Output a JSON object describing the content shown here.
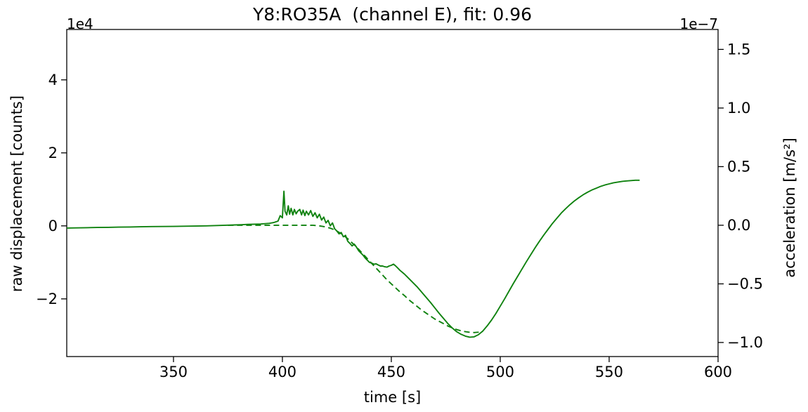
{
  "chart_data": {
    "type": "line",
    "title": "Y8:RO35A  (channel E), fit: 0.96",
    "xlabel": "time [s]",
    "ylabel_left": "raw displacement [counts]",
    "ylabel_right": "acceleration [m/s²]",
    "offset_left": "1e4",
    "offset_right": "1e−7",
    "xlim": [
      301,
      600
    ],
    "ylim_left": [
      -3.58,
      5.38
    ],
    "ylim_right": [
      -1.12,
      1.67
    ],
    "xticks": {
      "values": [
        350,
        400,
        450,
        500,
        550,
        600
      ],
      "labels": [
        "350",
        "400",
        "450",
        "500",
        "550",
        "600"
      ]
    },
    "yticks_left": {
      "values": [
        4,
        2,
        0,
        -2
      ],
      "labels": [
        "4",
        "2",
        "0",
        "−2"
      ]
    },
    "yticks_right": {
      "values": [
        1.5,
        1.0,
        0.5,
        0.0,
        -0.5,
        -1.0
      ],
      "labels": [
        "1.5",
        "1.0",
        "0.5",
        "0.0",
        "−0.5",
        "−1.0"
      ]
    },
    "line_color": "#0f820f",
    "legend": "off",
    "grid": "off",
    "series": [
      {
        "name": "raw displacement",
        "axis": "left",
        "style": "solid",
        "points": [
          [
            301,
            -0.06
          ],
          [
            305,
            -0.055
          ],
          [
            310,
            -0.05
          ],
          [
            315,
            -0.045
          ],
          [
            320,
            -0.04
          ],
          [
            325,
            -0.035
          ],
          [
            330,
            -0.03
          ],
          [
            335,
            -0.025
          ],
          [
            340,
            -0.02
          ],
          [
            345,
            -0.018
          ],
          [
            350,
            -0.015
          ],
          [
            355,
            -0.01
          ],
          [
            360,
            -0.005
          ],
          [
            365,
            0.0
          ],
          [
            370,
            0.01
          ],
          [
            375,
            0.02
          ],
          [
            378,
            0.025
          ],
          [
            381,
            0.03
          ],
          [
            384,
            0.04
          ],
          [
            387,
            0.045
          ],
          [
            390,
            0.05
          ],
          [
            392,
            0.06
          ],
          [
            394,
            0.07
          ],
          [
            396,
            0.09
          ],
          [
            398,
            0.13
          ],
          [
            399,
            0.28
          ],
          [
            400,
            0.22
          ],
          [
            400.7,
            0.95
          ],
          [
            401.2,
            0.4
          ],
          [
            402,
            0.3
          ],
          [
            402.7,
            0.55
          ],
          [
            403.3,
            0.32
          ],
          [
            404,
            0.48
          ],
          [
            404.8,
            0.3
          ],
          [
            405.5,
            0.45
          ],
          [
            406.3,
            0.33
          ],
          [
            407,
            0.4
          ],
          [
            408,
            0.45
          ],
          [
            408.8,
            0.3
          ],
          [
            409.5,
            0.43
          ],
          [
            410.3,
            0.28
          ],
          [
            411,
            0.4
          ],
          [
            412,
            0.3
          ],
          [
            413,
            0.42
          ],
          [
            414,
            0.26
          ],
          [
            415,
            0.36
          ],
          [
            416,
            0.22
          ],
          [
            417,
            0.32
          ],
          [
            418,
            0.16
          ],
          [
            419,
            0.24
          ],
          [
            420,
            0.08
          ],
          [
            421,
            0.15
          ],
          [
            422,
            0.0
          ],
          [
            423,
            0.08
          ],
          [
            424,
            -0.08
          ],
          [
            425,
            -0.14
          ],
          [
            426,
            -0.22
          ],
          [
            427,
            -0.18
          ],
          [
            428,
            -0.3
          ],
          [
            429,
            -0.26
          ],
          [
            430,
            -0.42
          ],
          [
            431,
            -0.48
          ],
          [
            432,
            -0.55
          ],
          [
            433,
            -0.5
          ],
          [
            434,
            -0.58
          ],
          [
            435,
            -0.68
          ],
          [
            436,
            -0.74
          ],
          [
            437,
            -0.8
          ],
          [
            438,
            -0.88
          ],
          [
            439,
            -0.94
          ],
          [
            440,
            -1.0
          ],
          [
            441,
            -1.02
          ],
          [
            442,
            -1.05
          ],
          [
            443,
            -1.04
          ],
          [
            444,
            -1.07
          ],
          [
            445,
            -1.1
          ],
          [
            446,
            -1.1
          ],
          [
            447,
            -1.12
          ],
          [
            448,
            -1.13
          ],
          [
            449,
            -1.1
          ],
          [
            450,
            -1.08
          ],
          [
            451,
            -1.05
          ],
          [
            452,
            -1.1
          ],
          [
            453,
            -1.16
          ],
          [
            454,
            -1.22
          ],
          [
            455,
            -1.27
          ],
          [
            456,
            -1.32
          ],
          [
            457,
            -1.38
          ],
          [
            458,
            -1.44
          ],
          [
            459,
            -1.5
          ],
          [
            460,
            -1.56
          ],
          [
            462,
            -1.68
          ],
          [
            464,
            -1.82
          ],
          [
            466,
            -1.96
          ],
          [
            468,
            -2.1
          ],
          [
            470,
            -2.25
          ],
          [
            472,
            -2.4
          ],
          [
            474,
            -2.54
          ],
          [
            476,
            -2.68
          ],
          [
            478,
            -2.8
          ],
          [
            480,
            -2.9
          ],
          [
            482,
            -2.97
          ],
          [
            484,
            -3.02
          ],
          [
            486,
            -3.05
          ],
          [
            488,
            -3.04
          ],
          [
            490,
            -2.98
          ],
          [
            492,
            -2.88
          ],
          [
            494,
            -2.74
          ],
          [
            496,
            -2.58
          ],
          [
            498,
            -2.4
          ],
          [
            500,
            -2.2
          ],
          [
            502,
            -2.0
          ],
          [
            504,
            -1.79
          ],
          [
            506,
            -1.58
          ],
          [
            508,
            -1.38
          ],
          [
            510,
            -1.18
          ],
          [
            512,
            -0.98
          ],
          [
            514,
            -0.79
          ],
          [
            516,
            -0.6
          ],
          [
            518,
            -0.42
          ],
          [
            520,
            -0.25
          ],
          [
            522,
            -0.09
          ],
          [
            524,
            0.07
          ],
          [
            526,
            0.21
          ],
          [
            528,
            0.35
          ],
          [
            530,
            0.47
          ],
          [
            532,
            0.58
          ],
          [
            534,
            0.68
          ],
          [
            536,
            0.77
          ],
          [
            538,
            0.85
          ],
          [
            540,
            0.92
          ],
          [
            542,
            0.98
          ],
          [
            544,
            1.03
          ],
          [
            546,
            1.08
          ],
          [
            548,
            1.12
          ],
          [
            550,
            1.15
          ],
          [
            552,
            1.18
          ],
          [
            554,
            1.2
          ],
          [
            556,
            1.22
          ],
          [
            558,
            1.23
          ],
          [
            560,
            1.24
          ],
          [
            562,
            1.25
          ],
          [
            564,
            1.25
          ]
        ]
      },
      {
        "name": "fit (acceleration)",
        "axis": "right",
        "style": "dashed",
        "points": [
          [
            375,
            0.0
          ],
          [
            380,
            0.0
          ],
          [
            385,
            0.0
          ],
          [
            390,
            0.0
          ],
          [
            395,
            0.0
          ],
          [
            400,
            0.0
          ],
          [
            405,
            0.0
          ],
          [
            410,
            0.0
          ],
          [
            414,
            0.0
          ],
          [
            417,
            -0.005
          ],
          [
            420,
            -0.015
          ],
          [
            422,
            -0.025
          ],
          [
            424,
            -0.04
          ],
          [
            426,
            -0.06
          ],
          [
            428,
            -0.085
          ],
          [
            430,
            -0.115
          ],
          [
            432,
            -0.15
          ],
          [
            434,
            -0.185
          ],
          [
            436,
            -0.225
          ],
          [
            438,
            -0.265
          ],
          [
            440,
            -0.305
          ],
          [
            442,
            -0.345
          ],
          [
            444,
            -0.385
          ],
          [
            446,
            -0.425
          ],
          [
            448,
            -0.465
          ],
          [
            450,
            -0.5
          ],
          [
            452,
            -0.535
          ],
          [
            454,
            -0.57
          ],
          [
            456,
            -0.6
          ],
          [
            458,
            -0.635
          ],
          [
            460,
            -0.665
          ],
          [
            462,
            -0.695
          ],
          [
            464,
            -0.725
          ],
          [
            466,
            -0.75
          ],
          [
            468,
            -0.775
          ],
          [
            470,
            -0.8
          ],
          [
            472,
            -0.82
          ],
          [
            474,
            -0.84
          ],
          [
            476,
            -0.86
          ],
          [
            478,
            -0.875
          ],
          [
            480,
            -0.89
          ],
          [
            482,
            -0.9
          ],
          [
            484,
            -0.908
          ],
          [
            486,
            -0.913
          ],
          [
            488,
            -0.915
          ],
          [
            490,
            -0.912
          ],
          [
            492,
            -0.905
          ]
        ]
      }
    ]
  }
}
